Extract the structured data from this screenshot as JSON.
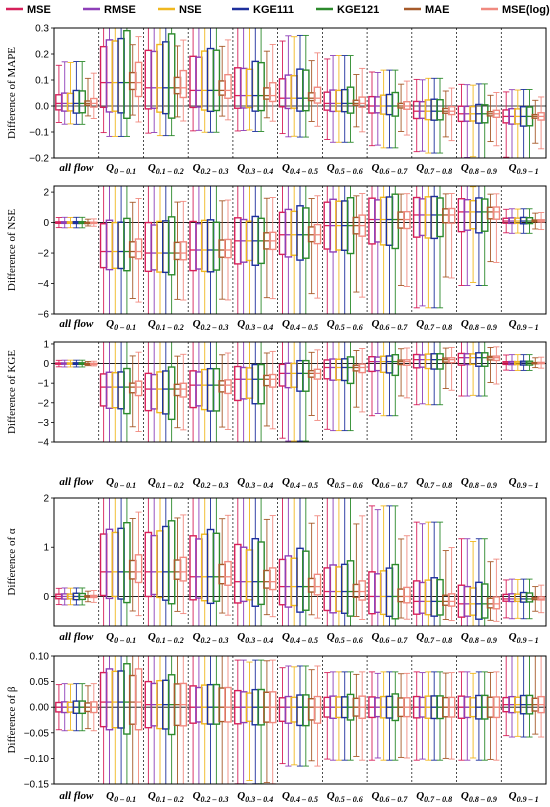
{
  "legend": [
    {
      "name": "MSE",
      "color": "#d6205a"
    },
    {
      "name": "RMSE",
      "color": "#8e3fb8"
    },
    {
      "name": "NSE",
      "color": "#f0b820"
    },
    {
      "name": "KGE111",
      "color": "#1d2f9c"
    },
    {
      "name": "KGE121",
      "color": "#2c8a2c"
    },
    {
      "name": "MAE",
      "color": "#a65a2a"
    },
    {
      "name": "MSE(log)",
      "color": "#f08a80"
    }
  ],
  "categories": [
    {
      "main": "all flow",
      "sub": ""
    },
    {
      "main": "Q",
      "sub": "0 – 0.1"
    },
    {
      "main": "Q",
      "sub": "0.1 – 0.2"
    },
    {
      "main": "Q",
      "sub": "0.2 – 0.3"
    },
    {
      "main": "Q",
      "sub": "0.3 – 0.4"
    },
    {
      "main": "Q",
      "sub": "0.4 – 0.5"
    },
    {
      "main": "Q",
      "sub": "0.5 – 0.6"
    },
    {
      "main": "Q",
      "sub": "0.6 – 0.7"
    },
    {
      "main": "Q",
      "sub": "0.7 – 0.8"
    },
    {
      "main": "Q",
      "sub": "0.8 – 0.9"
    },
    {
      "main": "Q",
      "sub": "0.9 – 1"
    }
  ],
  "chart_data": [
    {
      "type": "box",
      "ylabel": "Difference of MAPE",
      "ylim": [
        -0.2,
        0.3
      ],
      "yticks": [
        -0.2,
        -0.1,
        0.0,
        0.1,
        0.2,
        0.3
      ],
      "tick_labels": [
        "−0.2",
        "−0.1",
        "0.0",
        "0.1",
        "0.2",
        "0.3"
      ],
      "profile": {
        "q1": [
          -0.02,
          -0.02,
          -0.02,
          -0.01,
          -0.01,
          -0.01,
          -0.02,
          -0.03,
          -0.05,
          -0.06,
          -0.07
        ],
        "q3": [
          0.05,
          0.25,
          0.23,
          0.2,
          0.15,
          0.12,
          0.06,
          0.04,
          0.02,
          0.0,
          -0.01
        ],
        "med": [
          0.01,
          0.09,
          0.07,
          0.06,
          0.04,
          0.03,
          0.01,
          0.0,
          -0.02,
          -0.03,
          -0.04
        ],
        "wlo": [
          -0.06,
          -0.09,
          -0.09,
          -0.08,
          -0.08,
          -0.1,
          -0.12,
          -0.14,
          -0.16,
          -0.18,
          -0.19
        ],
        "whi": [
          0.15,
          0.3,
          0.3,
          0.3,
          0.28,
          0.24,
          0.17,
          0.12,
          0.09,
          0.07,
          0.05
        ]
      },
      "scale": [
        0.9,
        0.95,
        1.0,
        1.15,
        1.2,
        0.25,
        0.45
      ]
    },
    {
      "type": "box",
      "ylabel": "Difference of NSE",
      "ylim": [
        -6,
        2.4
      ],
      "yticks": [
        -6,
        -4,
        -2,
        0,
        2
      ],
      "tick_labels": [
        "−6",
        "−4",
        "−2",
        "0",
        "2"
      ],
      "profile": {
        "q1": [
          -0.05,
          -3.0,
          -3.2,
          -3.1,
          -2.6,
          -2.2,
          -1.8,
          -1.4,
          -0.9,
          -0.5,
          -0.05
        ],
        "q3": [
          0.05,
          0.0,
          0.0,
          0.0,
          0.2,
          0.8,
          1.4,
          1.6,
          1.6,
          1.5,
          0.3
        ],
        "med": [
          0.0,
          -1.9,
          -2.0,
          -1.8,
          -1.2,
          -0.8,
          -0.2,
          0.2,
          0.5,
          0.7,
          0.1
        ],
        "wlo": [
          -0.3,
          -6.0,
          -6.0,
          -6.0,
          -6.0,
          -6.0,
          -6.0,
          -5.5,
          -4.8,
          -3.5,
          -0.6
        ],
        "whi": [
          0.3,
          2.4,
          2.4,
          2.4,
          2.4,
          2.4,
          2.4,
          2.4,
          2.3,
          2.2,
          0.8
        ]
      },
      "scale": [
        1.0,
        1.0,
        1.0,
        1.1,
        1.1,
        0.35,
        0.4
      ]
    },
    {
      "type": "box",
      "ylabel": "Difference of KGE",
      "ylim": [
        -4,
        1.1
      ],
      "yticks": [
        -4,
        -3,
        -2,
        -1,
        0,
        1
      ],
      "tick_labels": [
        "−4",
        "−3",
        "−2",
        "−1",
        "0",
        "1"
      ],
      "profile": {
        "q1": [
          -0.03,
          -2.2,
          -2.4,
          -2.2,
          -1.8,
          -1.2,
          -0.8,
          -0.4,
          -0.2,
          -0.05,
          -0.05
        ],
        "q3": [
          0.03,
          -0.5,
          -0.5,
          -0.4,
          -0.2,
          0.0,
          0.2,
          0.35,
          0.45,
          0.5,
          0.1
        ],
        "med": [
          0.0,
          -1.2,
          -1.3,
          -1.1,
          -0.8,
          -0.5,
          -0.2,
          0.1,
          0.2,
          0.3,
          0.03
        ],
        "wlo": [
          -0.15,
          -4.0,
          -4.0,
          -4.0,
          -4.0,
          -3.5,
          -3.0,
          -2.3,
          -1.8,
          -1.4,
          -0.3
        ],
        "whi": [
          0.15,
          1.0,
          1.0,
          1.0,
          1.0,
          1.0,
          1.0,
          1.0,
          1.0,
          1.0,
          0.4
        ]
      },
      "scale": [
        1.0,
        1.0,
        1.05,
        1.2,
        1.3,
        0.3,
        0.4
      ]
    },
    {
      "type": "box",
      "ylabel": "Difference of α",
      "ylim": [
        -0.6,
        2.0
      ],
      "yticks": [
        0,
        1,
        2
      ],
      "tick_labels": [
        "0",
        "1",
        "2"
      ],
      "profile": {
        "q1": [
          -0.05,
          0.0,
          0.0,
          -0.05,
          -0.1,
          -0.2,
          -0.3,
          -0.35,
          -0.35,
          -0.4,
          -0.1
        ],
        "q3": [
          0.05,
          1.3,
          1.3,
          1.2,
          1.0,
          0.8,
          0.6,
          0.5,
          0.3,
          0.2,
          0.05
        ],
        "med": [
          0.0,
          0.5,
          0.5,
          0.4,
          0.3,
          0.2,
          0.1,
          0.0,
          -0.1,
          -0.15,
          -0.05
        ],
        "wlo": [
          -0.15,
          -0.6,
          -0.6,
          -0.6,
          -0.6,
          -0.6,
          -0.6,
          -0.6,
          -0.6,
          -0.6,
          -0.4
        ],
        "whi": [
          0.15,
          2.0,
          2.0,
          2.0,
          2.0,
          2.0,
          2.0,
          1.6,
          1.3,
          1.0,
          0.3
        ]
      },
      "scale": [
        1.0,
        1.0,
        1.0,
        1.2,
        1.2,
        0.3,
        0.4
      ]
    },
    {
      "type": "box",
      "ylabel": "Difference of β",
      "ylim": [
        -0.15,
        0.1
      ],
      "yticks": [
        -0.15,
        -0.1,
        -0.05,
        0.0,
        0.05,
        0.1
      ],
      "tick_labels": [
        "−0.15",
        "−0.10",
        "−0.05",
        "0.00",
        "0.05",
        "0.10"
      ],
      "profile": {
        "q1": [
          -0.01,
          -0.04,
          -0.04,
          -0.03,
          -0.03,
          -0.03,
          -0.02,
          -0.02,
          -0.02,
          -0.02,
          -0.01
        ],
        "q3": [
          0.01,
          0.07,
          0.05,
          0.04,
          0.03,
          0.02,
          0.02,
          0.02,
          0.02,
          0.02,
          0.02
        ],
        "med": [
          0.0,
          0.01,
          0.005,
          0.0,
          0.0,
          0.0,
          0.0,
          0.0,
          0.0,
          0.0,
          0.005
        ],
        "wlo": [
          -0.04,
          -0.15,
          -0.15,
          -0.15,
          -0.13,
          -0.1,
          -0.09,
          -0.09,
          -0.09,
          -0.09,
          -0.05
        ],
        "whi": [
          0.04,
          0.1,
          0.1,
          0.1,
          0.08,
          0.07,
          0.06,
          0.06,
          0.06,
          0.06,
          0.1
        ]
      },
      "scale": [
        1.0,
        1.0,
        1.0,
        1.1,
        1.2,
        0.9,
        1.0
      ]
    }
  ]
}
